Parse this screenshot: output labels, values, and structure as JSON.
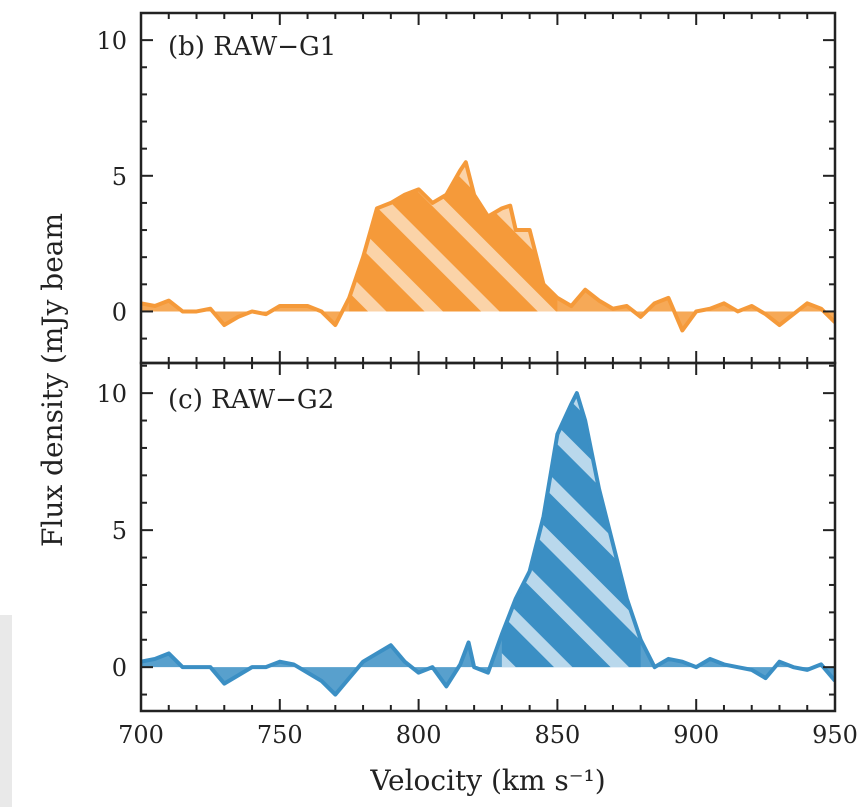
{
  "chart_data": [
    {
      "type": "area",
      "panel_label": "(b) RAW−G1",
      "ylabel": "Flux density (mJy beam",
      "xlim": [
        700,
        950
      ],
      "ylim": [
        -1.9,
        11
      ],
      "x_ticks": [
        700,
        750,
        800,
        850,
        900,
        950
      ],
      "y_ticks": [
        0,
        5,
        10
      ],
      "color": "#f59a3a",
      "hatch_fill": "#fbd3a8",
      "series": [
        {
          "x": [
            700,
            705,
            710,
            715,
            720,
            725,
            730,
            735,
            740,
            745,
            750,
            755,
            760,
            765,
            770,
            775,
            780,
            785,
            790,
            795,
            800,
            805,
            810,
            815,
            817,
            820,
            825,
            830,
            833,
            835,
            840,
            845,
            850,
            855,
            860,
            865,
            870,
            875,
            880,
            885,
            890,
            895,
            900,
            905,
            910,
            915,
            920,
            925,
            930,
            935,
            940,
            945,
            950
          ],
          "values": [
            0.3,
            0.2,
            0.4,
            0.0,
            0.0,
            0.1,
            -0.5,
            -0.2,
            0.0,
            -0.1,
            0.2,
            0.2,
            0.2,
            0.0,
            -0.5,
            0.5,
            2.0,
            3.8,
            4.0,
            4.3,
            4.5,
            4.0,
            4.3,
            5.2,
            5.5,
            4.3,
            3.5,
            3.8,
            3.9,
            3.0,
            3.0,
            1.0,
            0.5,
            0.2,
            0.8,
            0.4,
            0.1,
            0.2,
            -0.2,
            0.3,
            0.5,
            -0.7,
            0.0,
            0.1,
            0.3,
            0.0,
            0.2,
            -0.1,
            -0.5,
            -0.1,
            0.3,
            0.1,
            -0.4
          ]
        }
      ],
      "shaded_range": [
        772,
        852
      ]
    },
    {
      "type": "area",
      "panel_label": "(c) RAW−G2",
      "xlabel": "Velocity (km s⁻¹)",
      "xlim": [
        700,
        950
      ],
      "ylim": [
        -1.6,
        11.1
      ],
      "x_ticks": [
        700,
        750,
        800,
        850,
        900,
        950
      ],
      "x_tick_labels": [
        "700",
        "750",
        "800",
        "850",
        "900",
        "950"
      ],
      "y_ticks": [
        0,
        5,
        10
      ],
      "color": "#3b8fc4",
      "hatch_fill": "#b9d8ec",
      "series": [
        {
          "x": [
            700,
            705,
            710,
            715,
            720,
            725,
            730,
            735,
            740,
            745,
            750,
            755,
            760,
            765,
            770,
            775,
            780,
            785,
            790,
            795,
            800,
            805,
            810,
            815,
            818,
            820,
            825,
            830,
            835,
            840,
            845,
            850,
            855,
            857,
            860,
            865,
            870,
            875,
            880,
            885,
            890,
            895,
            900,
            905,
            910,
            915,
            920,
            925,
            930,
            935,
            940,
            945,
            950
          ],
          "values": [
            0.2,
            0.3,
            0.5,
            0.0,
            0.0,
            0.0,
            -0.6,
            -0.3,
            0.0,
            0.0,
            0.2,
            0.1,
            -0.2,
            -0.5,
            -1.0,
            -0.4,
            0.2,
            0.5,
            0.8,
            0.2,
            -0.2,
            0.0,
            -0.7,
            0.1,
            0.9,
            0.0,
            -0.2,
            1.2,
            2.5,
            3.5,
            5.5,
            8.5,
            9.6,
            10.0,
            9.0,
            6.5,
            4.5,
            2.5,
            1.0,
            0.0,
            0.3,
            0.2,
            0.0,
            0.3,
            0.1,
            0.0,
            -0.1,
            -0.4,
            0.2,
            0.0,
            -0.1,
            0.1,
            -0.5
          ]
        }
      ],
      "shaded_range": [
        826,
        884
      ]
    }
  ]
}
